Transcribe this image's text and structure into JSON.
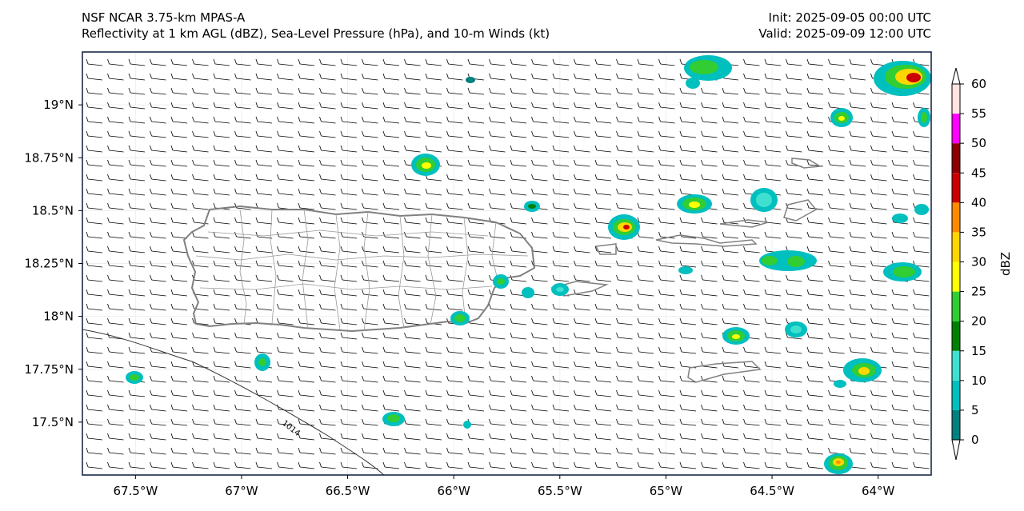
{
  "header": {
    "model_line": "NSF NCAR 3.75-km MPAS-A",
    "fields_line": "Reflectivity at 1 km AGL (dBZ), Sea-Level Pressure (hPa), and 10-m Winds (kt)",
    "init_line": "Init: 2025-09-05 00:00 UTC",
    "valid_line": "Valid: 2025-09-09 12:00 UTC"
  },
  "map": {
    "lon_range": [
      -67.75,
      -63.75
    ],
    "lat_range": [
      17.25,
      19.25
    ],
    "isobar_label": "1014"
  },
  "axes": {
    "lon_ticks": [
      {
        "value": -67.5,
        "label": "67.5°W"
      },
      {
        "value": -67.0,
        "label": "67°W"
      },
      {
        "value": -66.5,
        "label": "66.5°W"
      },
      {
        "value": -66.0,
        "label": "66°W"
      },
      {
        "value": -65.5,
        "label": "65.5°W"
      },
      {
        "value": -65.0,
        "label": "65°W"
      },
      {
        "value": -64.5,
        "label": "64.5°W"
      },
      {
        "value": -64.0,
        "label": "64°W"
      }
    ],
    "lat_ticks": [
      {
        "value": 19.0,
        "label": "19°N"
      },
      {
        "value": 18.75,
        "label": "18.75°N"
      },
      {
        "value": 18.5,
        "label": "18.5°N"
      },
      {
        "value": 18.25,
        "label": "18.25°N"
      },
      {
        "value": 18.0,
        "label": "18°N"
      },
      {
        "value": 17.75,
        "label": "17.75°N"
      },
      {
        "value": 17.5,
        "label": "17.5°N"
      }
    ]
  },
  "colorbar": {
    "label": "dBZ",
    "ticks": [
      "0",
      "5",
      "10",
      "15",
      "20",
      "25",
      "30",
      "35",
      "40",
      "45",
      "50",
      "55",
      "60"
    ],
    "colors": [
      "#00807f",
      "#00bfbf",
      "#40e0d0",
      "#008000",
      "#32cd32",
      "#ffff00",
      "#ffd700",
      "#ff8c00",
      "#cc0000",
      "#8b0000",
      "#ff00ff",
      "#ffe4e1"
    ]
  }
}
